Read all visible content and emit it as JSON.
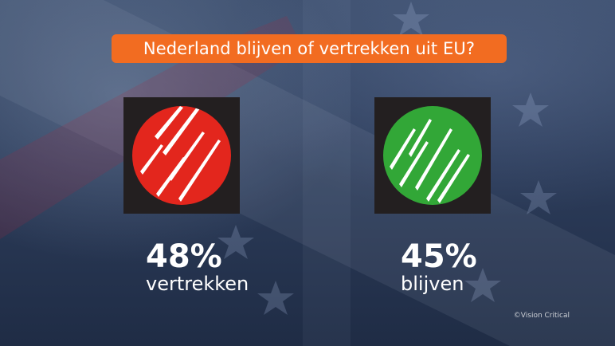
{
  "title": "Nederland blijven of vertrekken uit EU?",
  "options": [
    {
      "percentage": "48%",
      "label": "vertrekken",
      "value": 48,
      "color": "#e3261d"
    },
    {
      "percentage": "45%",
      "label": "blijven",
      "value": 45,
      "color": "#32a737"
    }
  ],
  "credit": "©Vision Critical",
  "colors": {
    "title_bg": "#f26c21",
    "tile_bg": "#231f20",
    "text": "#ffffff"
  },
  "background": "eu-flag-and-union-jack-background"
}
